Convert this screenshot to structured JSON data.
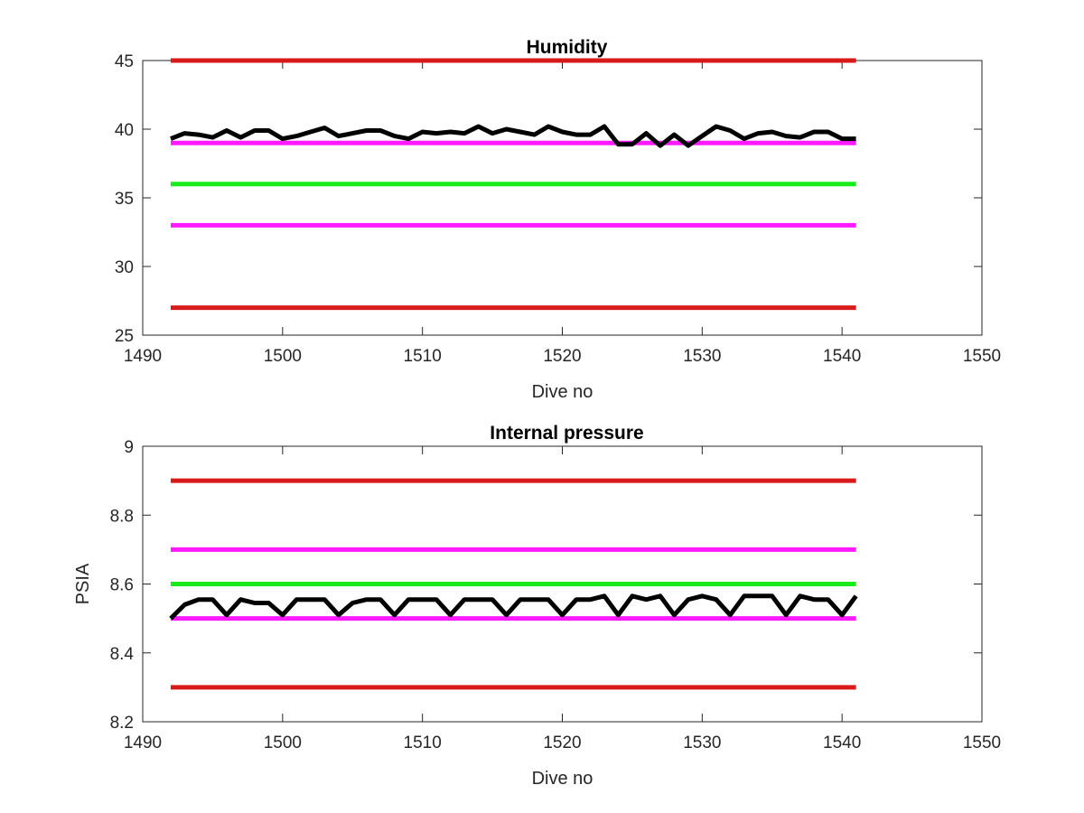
{
  "chart_data": [
    {
      "type": "line",
      "title": "Humidity",
      "xlabel": "Dive no",
      "ylabel": "",
      "xlim": [
        1490,
        1550
      ],
      "ylim": [
        25,
        45
      ],
      "xticks": [
        "1490",
        "1500",
        "1510",
        "1520",
        "1530",
        "1540",
        "1550"
      ],
      "yticks": [
        "25",
        "30",
        "35",
        "40",
        "45"
      ],
      "grid": false,
      "reference_lines": [
        {
          "y": 45,
          "x": [
            1492,
            1541
          ],
          "color": "#d91a1a"
        },
        {
          "y": 39,
          "x": [
            1492,
            1541
          ],
          "color": "#ff1aff"
        },
        {
          "y": 36,
          "x": [
            1492,
            1541
          ],
          "color": "#1aeb1a"
        },
        {
          "y": 33,
          "x": [
            1492,
            1541
          ],
          "color": "#ff1aff"
        },
        {
          "y": 27,
          "x": [
            1492,
            1541
          ],
          "color": "#d91a1a"
        }
      ],
      "series": [
        {
          "color": "#000000",
          "x": [
            1492,
            1493,
            1494,
            1495,
            1496,
            1497,
            1498,
            1499,
            1500,
            1501,
            1502,
            1503,
            1504,
            1505,
            1506,
            1507,
            1508,
            1509,
            1510,
            1511,
            1512,
            1513,
            1514,
            1515,
            1516,
            1517,
            1518,
            1519,
            1520,
            1521,
            1522,
            1523,
            1524,
            1525,
            1526,
            1527,
            1528,
            1529,
            1530,
            1531,
            1532,
            1533,
            1534,
            1535,
            1536,
            1537,
            1538,
            1539,
            1540,
            1541
          ],
          "values": [
            39.3,
            39.7,
            39.6,
            39.4,
            39.9,
            39.4,
            39.9,
            39.9,
            39.3,
            39.5,
            39.8,
            40.1,
            39.5,
            39.7,
            39.9,
            39.9,
            39.5,
            39.3,
            39.8,
            39.7,
            39.8,
            39.7,
            40.2,
            39.7,
            40.0,
            39.8,
            39.6,
            40.2,
            39.8,
            39.6,
            39.6,
            40.2,
            38.9,
            38.9,
            39.7,
            38.8,
            39.6,
            38.8,
            39.5,
            40.2,
            39.9,
            39.3,
            39.7,
            39.8,
            39.5,
            39.4,
            39.8,
            39.8,
            39.3,
            39.3
          ]
        }
      ]
    },
    {
      "type": "line",
      "title": "Internal pressure",
      "xlabel": "Dive no",
      "ylabel": "PSIA",
      "xlim": [
        1490,
        1550
      ],
      "ylim": [
        8.2,
        9.0
      ],
      "xticks": [
        "1490",
        "1500",
        "1510",
        "1520",
        "1530",
        "1540",
        "1550"
      ],
      "yticks": [
        "8.2",
        "8.4",
        "8.6",
        "8.8",
        "9"
      ],
      "grid": false,
      "reference_lines": [
        {
          "y": 8.9,
          "x": [
            1492,
            1541
          ],
          "color": "#d91a1a"
        },
        {
          "y": 8.7,
          "x": [
            1492,
            1541
          ],
          "color": "#ff1aff"
        },
        {
          "y": 8.6,
          "x": [
            1492,
            1541
          ],
          "color": "#1aeb1a"
        },
        {
          "y": 8.5,
          "x": [
            1492,
            1541
          ],
          "color": "#ff1aff"
        },
        {
          "y": 8.3,
          "x": [
            1492,
            1541
          ],
          "color": "#d91a1a"
        }
      ],
      "series": [
        {
          "color": "#000000",
          "x": [
            1492,
            1493,
            1494,
            1495,
            1496,
            1497,
            1498,
            1499,
            1500,
            1501,
            1502,
            1503,
            1504,
            1505,
            1506,
            1507,
            1508,
            1509,
            1510,
            1511,
            1512,
            1513,
            1514,
            1515,
            1516,
            1517,
            1518,
            1519,
            1520,
            1521,
            1522,
            1523,
            1524,
            1525,
            1526,
            1527,
            1528,
            1529,
            1530,
            1531,
            1532,
            1533,
            1534,
            1535,
            1536,
            1537,
            1538,
            1539,
            1540,
            1541
          ],
          "values": [
            8.5,
            8.54,
            8.555,
            8.555,
            8.51,
            8.555,
            8.545,
            8.545,
            8.51,
            8.555,
            8.555,
            8.555,
            8.51,
            8.545,
            8.555,
            8.555,
            8.51,
            8.555,
            8.555,
            8.555,
            8.51,
            8.555,
            8.555,
            8.555,
            8.51,
            8.555,
            8.555,
            8.555,
            8.51,
            8.555,
            8.555,
            8.565,
            8.51,
            8.565,
            8.555,
            8.565,
            8.51,
            8.555,
            8.565,
            8.555,
            8.51,
            8.565,
            8.565,
            8.565,
            8.51,
            8.565,
            8.555,
            8.555,
            8.51,
            8.565
          ]
        }
      ]
    }
  ]
}
